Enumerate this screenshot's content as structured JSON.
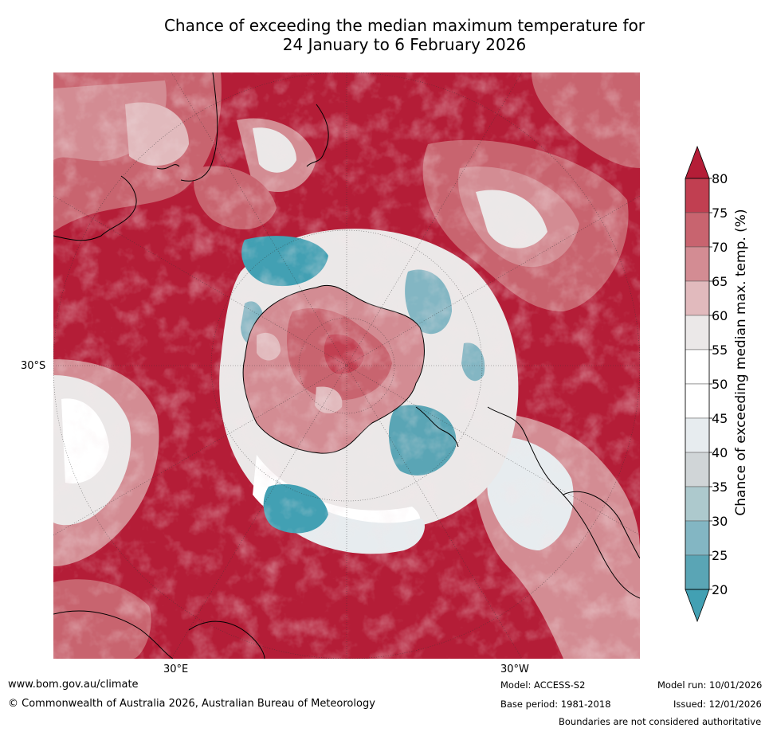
{
  "title": {
    "line1": "Chance of exceeding the median maximum temperature for",
    "line2": "24 January to 6 February 2026"
  },
  "map": {
    "projection": "south polar stereographic",
    "tick_labels": {
      "left": "30°S",
      "bottom_left": "30°E",
      "bottom_right": "30°W"
    }
  },
  "colorbar": {
    "label": "Chance of exceeding median max. temp. (%)",
    "ticks": [
      "80",
      "75",
      "70",
      "65",
      "60",
      "55",
      "50",
      "45",
      "40",
      "35",
      "30",
      "25",
      "20"
    ],
    "colors": [
      "#b41d37",
      "#c13f51",
      "#c8646f",
      "#d38c93",
      "#e1babd",
      "#ebe8e8",
      "#ffffff",
      "#ffffff",
      "#e7ecef",
      "#d0d5d7",
      "#adc9cd",
      "#83b6c3",
      "#5aa5b5",
      "#42a0b3"
    ]
  },
  "footer": {
    "website": "www.bom.gov.au/climate",
    "copyright": "© Commonwealth of Australia 2026, Australian Bureau of Meteorology",
    "model": "Model: ACCESS-S2",
    "model_run": "Model run: 10/01/2026",
    "base_period": "Base period: 1981-2018",
    "issued": "Issued: 12/01/2026",
    "disclaimer": "Boundaries are not considered authoritative"
  }
}
